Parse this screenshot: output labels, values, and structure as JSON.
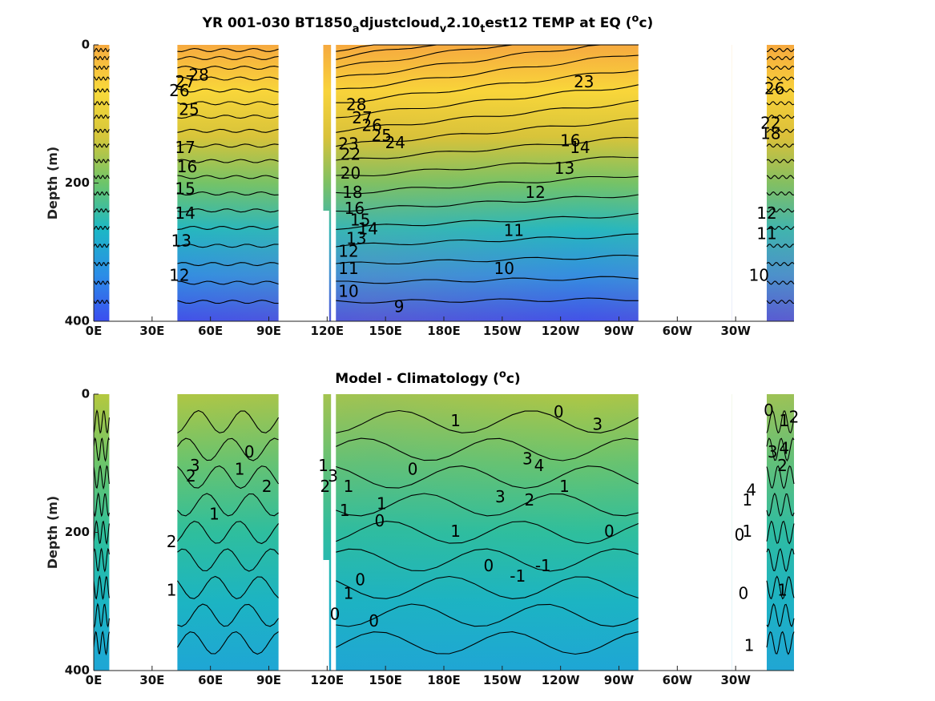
{
  "chart_data": [
    {
      "type": "heatmap",
      "title": "YR 001-030 BT1850_adjustcloud_v2.10_test12 TEMP at EQ (°c)",
      "title_parts": {
        "main": "YR 001-030 BT1850",
        "s1": "a",
        "m2": "djustcloud",
        "s2": "v",
        "m3": "2.10",
        "s3": "t",
        "m4": "est12 TEMP at EQ (",
        "sup": "o",
        "end": "c)"
      },
      "ylabel": "Depth (m)",
      "ylim": [
        0,
        400
      ],
      "y_reversed": true,
      "xlim": [
        0,
        360
      ],
      "yticks": [
        0,
        200,
        400
      ],
      "xticks": [
        "0E",
        "30E",
        "60E",
        "90E",
        "120E",
        "150E",
        "180E",
        "150W",
        "120W",
        "90W",
        "60W",
        "30W"
      ],
      "colormap": [
        "#3a4df0",
        "#2b8de8",
        "#1bb8c6",
        "#6cc56a",
        "#d5c63a",
        "#f9da3a",
        "#f6aa40"
      ],
      "value_range": [
        8,
        29
      ],
      "land_lon_ranges": [
        [
          8,
          43
        ],
        [
          95,
          118
        ],
        [
          328,
          346
        ]
      ],
      "contour_labels": [
        {
          "v": "28",
          "lon": 54,
          "d": 45
        },
        {
          "v": "27",
          "lon": 47,
          "d": 55
        },
        {
          "v": "26",
          "lon": 44,
          "d": 68
        },
        {
          "v": "25",
          "lon": 49,
          "d": 95
        },
        {
          "v": "17",
          "lon": 47,
          "d": 150
        },
        {
          "v": "16",
          "lon": 48,
          "d": 178
        },
        {
          "v": "15",
          "lon": 47,
          "d": 210
        },
        {
          "v": "14",
          "lon": 47,
          "d": 245
        },
        {
          "v": "13",
          "lon": 45,
          "d": 285
        },
        {
          "v": "12",
          "lon": 44,
          "d": 335
        },
        {
          "v": "28",
          "lon": 135,
          "d": 88
        },
        {
          "v": "27",
          "lon": 138,
          "d": 107
        },
        {
          "v": "26",
          "lon": 143,
          "d": 118
        },
        {
          "v": "25",
          "lon": 148,
          "d": 133
        },
        {
          "v": "24",
          "lon": 155,
          "d": 143
        },
        {
          "v": "23",
          "lon": 131,
          "d": 145
        },
        {
          "v": "22",
          "lon": 132,
          "d": 160
        },
        {
          "v": "20",
          "lon": 132,
          "d": 187
        },
        {
          "v": "18",
          "lon": 133,
          "d": 215
        },
        {
          "v": "16",
          "lon": 134,
          "d": 238
        },
        {
          "v": "15",
          "lon": 137,
          "d": 255
        },
        {
          "v": "14",
          "lon": 141,
          "d": 268
        },
        {
          "v": "13",
          "lon": 135,
          "d": 282
        },
        {
          "v": "12",
          "lon": 131,
          "d": 300
        },
        {
          "v": "11",
          "lon": 131,
          "d": 325
        },
        {
          "v": "10",
          "lon": 131,
          "d": 358
        },
        {
          "v": "9",
          "lon": 157,
          "d": 380
        },
        {
          "v": "10",
          "lon": 211,
          "d": 325
        },
        {
          "v": "11",
          "lon": 216,
          "d": 270
        },
        {
          "v": "12",
          "lon": 227,
          "d": 215
        },
        {
          "v": "13",
          "lon": 242,
          "d": 180
        },
        {
          "v": "14",
          "lon": 250,
          "d": 150
        },
        {
          "v": "16",
          "lon": 245,
          "d": 140
        },
        {
          "v": "23",
          "lon": 252,
          "d": 55
        },
        {
          "v": "26",
          "lon": 350,
          "d": 65
        },
        {
          "v": "22",
          "lon": 348,
          "d": 115
        },
        {
          "v": "18",
          "lon": 348,
          "d": 130
        },
        {
          "v": "12",
          "lon": 346,
          "d": 245
        },
        {
          "v": "11",
          "lon": 346,
          "d": 275
        },
        {
          "v": "10",
          "lon": 342,
          "d": 335
        }
      ]
    },
    {
      "type": "heatmap",
      "title": "Model - Climatology (°c)",
      "title_parts": {
        "main": "Model - Climatology (",
        "sup": "o",
        "end": "c)"
      },
      "ylabel": "Depth (m)",
      "ylim": [
        0,
        400
      ],
      "y_reversed": true,
      "xlim": [
        0,
        360
      ],
      "yticks": [
        0,
        200,
        400
      ],
      "xticks": [
        "0E",
        "30E",
        "60E",
        "90E",
        "120E",
        "150E",
        "180E",
        "150W",
        "120W",
        "90W",
        "60W",
        "30W"
      ],
      "colormap": [
        "#1ea6d6",
        "#1bb5c2",
        "#2fc09a",
        "#6cc56a",
        "#b5c83e"
      ],
      "value_range": [
        -2,
        5
      ],
      "land_lon_ranges": [
        [
          8,
          43
        ],
        [
          95,
          118
        ],
        [
          328,
          346
        ]
      ],
      "contour_labels": [
        {
          "v": "3",
          "lon": 52,
          "d": 105
        },
        {
          "v": "2",
          "lon": 50,
          "d": 120
        },
        {
          "v": "0",
          "lon": 80,
          "d": 85
        },
        {
          "v": "1",
          "lon": 75,
          "d": 110
        },
        {
          "v": "2",
          "lon": 89,
          "d": 135
        },
        {
          "v": "1",
          "lon": 62,
          "d": 175
        },
        {
          "v": "2",
          "lon": 40,
          "d": 215
        },
        {
          "v": "1",
          "lon": 40,
          "d": 285
        },
        {
          "v": "1",
          "lon": 118,
          "d": 105
        },
        {
          "v": "2",
          "lon": 119,
          "d": 135
        },
        {
          "v": "3",
          "lon": 123,
          "d": 120
        },
        {
          "v": "1",
          "lon": 131,
          "d": 135
        },
        {
          "v": "1",
          "lon": 129,
          "d": 170
        },
        {
          "v": "0",
          "lon": 147,
          "d": 185
        },
        {
          "v": "1",
          "lon": 148,
          "d": 160
        },
        {
          "v": "0",
          "lon": 137,
          "d": 270
        },
        {
          "v": "1",
          "lon": 131,
          "d": 290
        },
        {
          "v": "0",
          "lon": 124,
          "d": 320
        },
        {
          "v": "0",
          "lon": 144,
          "d": 330
        },
        {
          "v": "0",
          "lon": 164,
          "d": 110
        },
        {
          "v": "1",
          "lon": 186,
          "d": 40
        },
        {
          "v": "3",
          "lon": 223,
          "d": 95
        },
        {
          "v": "4",
          "lon": 229,
          "d": 105
        },
        {
          "v": "3",
          "lon": 209,
          "d": 150
        },
        {
          "v": "2",
          "lon": 224,
          "d": 155
        },
        {
          "v": "1",
          "lon": 242,
          "d": 135
        },
        {
          "v": "0",
          "lon": 239,
          "d": 27
        },
        {
          "v": "3",
          "lon": 259,
          "d": 45
        },
        {
          "v": "1",
          "lon": 186,
          "d": 200
        },
        {
          "v": "0",
          "lon": 203,
          "d": 250
        },
        {
          "v": "-1",
          "lon": 218,
          "d": 265
        },
        {
          "v": "-1",
          "lon": 231,
          "d": 250
        },
        {
          "v": "0",
          "lon": 265,
          "d": 200
        },
        {
          "v": "0",
          "lon": 347,
          "d": 25
        },
        {
          "v": "1",
          "lon": 355,
          "d": 40
        },
        {
          "v": "2",
          "lon": 360,
          "d": 35
        },
        {
          "v": "3",
          "lon": 349,
          "d": 85
        },
        {
          "v": "4",
          "lon": 355,
          "d": 80
        },
        {
          "v": "2",
          "lon": 354,
          "d": 105
        },
        {
          "v": "1",
          "lon": 336,
          "d": 155
        },
        {
          "v": "4",
          "lon": 338,
          "d": 140
        },
        {
          "v": "0",
          "lon": 332,
          "d": 205
        },
        {
          "v": "1",
          "lon": 336,
          "d": 200
        },
        {
          "v": "0",
          "lon": 334,
          "d": 290
        },
        {
          "v": "1",
          "lon": 354,
          "d": 285
        },
        {
          "v": "1",
          "lon": 337,
          "d": 365
        }
      ]
    }
  ]
}
